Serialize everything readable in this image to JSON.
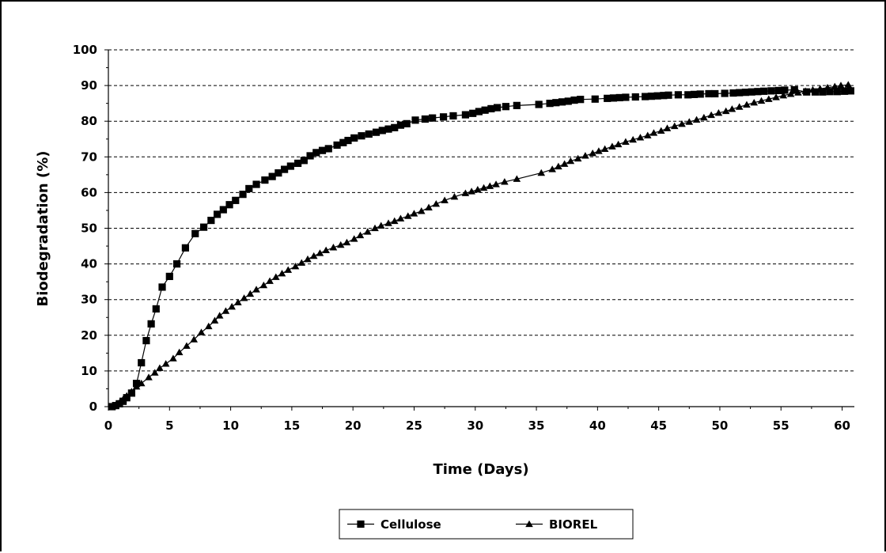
{
  "chart_data": {
    "type": "line",
    "xlabel": "Time (Days)",
    "ylabel": "Biodegradation (%)",
    "xlim": [
      0,
      61
    ],
    "ylim": [
      0,
      100
    ],
    "xticks": [
      0,
      5,
      10,
      15,
      20,
      25,
      30,
      35,
      40,
      45,
      50,
      55,
      60
    ],
    "yticks": [
      0,
      10,
      20,
      30,
      40,
      50,
      60,
      70,
      80,
      90,
      100
    ],
    "grid": "horizontal dashed",
    "legend_position": "bottom-center",
    "series": [
      {
        "name": "Cellulose",
        "marker": "square",
        "color": "#000000",
        "x": [
          0.3,
          0.6,
          0.9,
          1.2,
          1.5,
          1.9,
          2.3,
          2.7,
          3.1,
          3.5,
          3.9,
          4.4,
          5.0,
          5.6,
          6.3,
          7.1,
          7.8,
          8.4,
          8.9,
          9.4,
          9.9,
          10.4,
          11.0,
          11.5,
          12.1,
          12.8,
          13.4,
          13.9,
          14.4,
          14.9,
          15.5,
          16.0,
          16.5,
          17.0,
          17.5,
          18.0,
          18.7,
          19.2,
          19.6,
          20.1,
          20.7,
          21.3,
          21.9,
          22.4,
          22.9,
          23.4,
          23.9,
          24.4,
          25.1,
          25.9,
          26.5,
          27.4,
          28.2,
          29.2,
          29.8,
          30.3,
          30.8,
          31.3,
          31.8,
          32.5,
          33.4,
          35.2,
          36.1,
          36.6,
          37.1,
          37.6,
          38.1,
          38.6,
          39.8,
          40.8,
          41.3,
          41.8,
          42.3,
          43.1,
          43.9,
          44.4,
          44.9,
          45.4,
          45.8,
          46.6,
          47.4,
          47.9,
          48.4,
          49.1,
          49.6,
          50.4,
          51.1,
          51.6,
          52.1,
          52.6,
          53.1,
          53.6,
          54.2,
          54.8,
          55.3,
          56.1,
          57.1,
          57.8,
          58.4,
          59.0,
          59.6,
          60.2,
          60.7
        ],
        "y": [
          0.0,
          0.3,
          0.8,
          1.5,
          2.5,
          3.8,
          6.5,
          12.3,
          18.5,
          23.2,
          27.4,
          33.5,
          36.5,
          40.0,
          44.5,
          48.5,
          50.3,
          52.2,
          53.9,
          55.2,
          56.6,
          57.8,
          59.5,
          61.1,
          62.3,
          63.5,
          64.5,
          65.5,
          66.5,
          67.4,
          68.2,
          69.0,
          70.3,
          71.2,
          71.8,
          72.3,
          73.3,
          74.0,
          74.6,
          75.3,
          75.9,
          76.4,
          76.9,
          77.4,
          77.8,
          78.2,
          78.9,
          79.3,
          80.3,
          80.6,
          80.9,
          81.2,
          81.5,
          81.8,
          82.2,
          82.7,
          83.1,
          83.5,
          83.8,
          84.1,
          84.4,
          84.7,
          85.0,
          85.2,
          85.4,
          85.6,
          85.9,
          86.1,
          86.2,
          86.4,
          86.5,
          86.6,
          86.7,
          86.8,
          86.9,
          87.0,
          87.1,
          87.2,
          87.3,
          87.4,
          87.4,
          87.5,
          87.6,
          87.7,
          87.7,
          87.8,
          87.9,
          88.0,
          88.1,
          88.2,
          88.3,
          88.4,
          88.5,
          88.6,
          88.7,
          88.8,
          88.2,
          88.2,
          88.2,
          88.3,
          88.3,
          88.4,
          88.5
        ]
      },
      {
        "name": "BIOREL",
        "marker": "triangle",
        "color": "#000000",
        "x": [
          0.3,
          0.6,
          0.9,
          1.2,
          1.5,
          1.9,
          2.3,
          2.7,
          3.3,
          3.8,
          4.2,
          4.7,
          5.3,
          5.8,
          6.4,
          7.0,
          7.6,
          8.2,
          8.7,
          9.1,
          9.6,
          10.1,
          10.6,
          11.1,
          11.6,
          12.1,
          12.7,
          13.2,
          13.7,
          14.2,
          14.7,
          15.3,
          15.8,
          16.3,
          16.8,
          17.3,
          17.8,
          18.4,
          19.0,
          19.5,
          20.1,
          20.6,
          21.2,
          21.8,
          22.3,
          22.9,
          23.4,
          23.9,
          24.5,
          25.0,
          25.6,
          26.2,
          26.8,
          27.5,
          28.3,
          29.2,
          29.7,
          30.2,
          30.7,
          31.2,
          31.7,
          32.4,
          33.4,
          35.4,
          36.3,
          36.8,
          37.3,
          37.8,
          38.4,
          39.0,
          39.6,
          40.1,
          40.6,
          41.2,
          41.7,
          42.3,
          42.9,
          43.5,
          44.1,
          44.6,
          45.2,
          45.7,
          46.3,
          46.9,
          47.5,
          48.1,
          48.7,
          49.3,
          49.9,
          50.5,
          51.0,
          51.6,
          52.2,
          52.8,
          53.4,
          54.0,
          54.6,
          55.2,
          55.8,
          56.4,
          57.0,
          57.6,
          58.2,
          58.8,
          59.4,
          59.9,
          60.5
        ],
        "y": [
          0.0,
          0.4,
          1.0,
          2.0,
          3.0,
          4.2,
          5.6,
          6.5,
          8.2,
          9.5,
          10.8,
          12.0,
          13.5,
          15.2,
          17.0,
          18.8,
          20.8,
          22.5,
          24.1,
          25.5,
          26.8,
          28.0,
          29.2,
          30.4,
          31.6,
          32.8,
          34.0,
          35.2,
          36.3,
          37.3,
          38.3,
          39.3,
          40.3,
          41.3,
          42.2,
          43.0,
          43.8,
          44.6,
          45.3,
          46.0,
          47.0,
          48.0,
          49.0,
          50.0,
          50.7,
          51.4,
          52.0,
          52.7,
          53.4,
          54.1,
          54.8,
          55.8,
          56.8,
          57.8,
          58.8,
          59.8,
          60.3,
          60.8,
          61.3,
          61.8,
          62.3,
          63.0,
          63.8,
          65.5,
          66.5,
          67.3,
          68.0,
          68.8,
          69.5,
          70.3,
          71.0,
          71.6,
          72.2,
          72.9,
          73.5,
          74.2,
          74.8,
          75.4,
          76.0,
          76.7,
          77.3,
          78.0,
          78.6,
          79.2,
          79.8,
          80.4,
          81.0,
          81.7,
          82.3,
          82.8,
          83.4,
          84.0,
          84.6,
          85.2,
          85.7,
          86.2,
          86.7,
          87.2,
          87.6,
          88.0,
          88.4,
          88.8,
          89.1,
          89.4,
          89.7,
          90.0,
          90.2
        ]
      }
    ]
  }
}
